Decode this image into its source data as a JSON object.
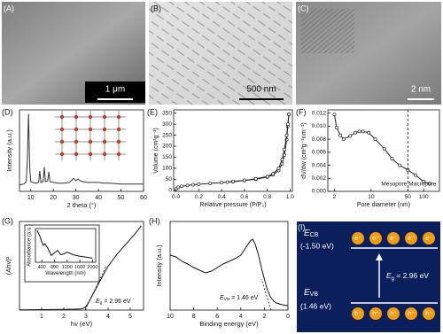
{
  "panel_labels": [
    "(A)",
    "(B)",
    "(C)",
    "(D)",
    "(E)",
    "(F)",
    "(G)",
    "(H)",
    "(I)"
  ],
  "micrographs": [
    {
      "scale_bar": "1 μm"
    },
    {
      "scale_bar": "500 nm"
    },
    {
      "scale_bar": "2 nm"
    }
  ],
  "chart_data": [
    {
      "type": "line",
      "x_label": "2 theta (°)",
      "y_label": "Intensity (a.u.)",
      "xlim": [
        5,
        60
      ],
      "ylim": [
        0,
        100
      ],
      "xticks": [
        10,
        20,
        30,
        40,
        50,
        60
      ],
      "series": [
        {
          "color": "#333333",
          "x": [
            5,
            7,
            8,
            8.5,
            9,
            9.5,
            10,
            12,
            13.5,
            14,
            14.5,
            15.5,
            16,
            16.5,
            17.5,
            18,
            18.5,
            20,
            22,
            25,
            27,
            28,
            29,
            30,
            31,
            32,
            33,
            35,
            38,
            40,
            42,
            45,
            50,
            55,
            60
          ],
          "values": [
            8,
            9,
            12,
            40,
            95,
            30,
            12,
            10,
            11,
            25,
            11,
            12,
            30,
            12,
            13,
            24,
            12,
            11,
            10,
            10,
            11,
            13,
            16,
            13,
            15,
            13,
            12,
            11,
            11,
            11,
            10,
            10,
            9,
            9,
            9
          ]
        }
      ]
    },
    {
      "type": "line",
      "x_label": "Relative pressure (P/P₀)",
      "y_label": "Volume (cm³g⁻¹)",
      "xlim": [
        -0.02,
        1.02
      ],
      "ylim": [
        -5,
        365
      ],
      "xticks": [
        {
          "value": 0,
          "label": "0.0"
        },
        0.2,
        0.4,
        0.6,
        0.8,
        {
          "value": 1,
          "label": "1.0"
        }
      ],
      "yticks": [
        0,
        50,
        100,
        150,
        200,
        250,
        300,
        350
      ],
      "series": [
        {
          "color": "#222222",
          "markers": true,
          "x": [
            0.005,
            0.02,
            0.05,
            0.1,
            0.15,
            0.2,
            0.3,
            0.4,
            0.5,
            0.6,
            0.7,
            0.8,
            0.85,
            0.9,
            0.93,
            0.95,
            0.97,
            0.98,
            0.99
          ],
          "values": [
            8,
            14,
            18,
            22,
            25,
            27,
            31,
            35,
            39,
            44,
            50,
            60,
            70,
            90,
            120,
            160,
            230,
            290,
            345
          ]
        },
        {
          "color": "#222222",
          "markers": true,
          "x": [
            0.99,
            0.98,
            0.97,
            0.95,
            0.93,
            0.9,
            0.85,
            0.8,
            0.7,
            0.6,
            0.5,
            0.45
          ],
          "values": [
            345,
            300,
            250,
            185,
            140,
            100,
            75,
            62,
            52,
            45,
            40,
            37
          ]
        }
      ]
    },
    {
      "type": "line",
      "x_label": "Pore diameter (nm)",
      "y_label": "dV/dw (cm³g⁻¹nm⁻¹)",
      "log_x": true,
      "xlim": [
        1.5,
        200
      ],
      "ylim": [
        0,
        0.0125
      ],
      "xticks": [
        2,
        10,
        50,
        100
      ],
      "yticks": [
        {
          "value": 0,
          "label": "0.000"
        },
        0.002,
        0.004,
        0.006,
        0.008,
        {
          "value": 0.01,
          "label": "0.010"
        },
        0.012
      ],
      "vline_x": 50,
      "annotations": [
        "Mesopore",
        "Macropore"
      ],
      "series": [
        {
          "color": "#222222",
          "markers": true,
          "x": [
            2,
            2.2,
            2.6,
            3,
            4,
            5,
            6,
            7,
            9,
            12,
            18,
            25,
            35,
            50,
            70,
            100,
            130
          ],
          "values": [
            0.0118,
            0.0098,
            0.0086,
            0.008,
            0.0085,
            0.009,
            0.0092,
            0.0092,
            0.009,
            0.008,
            0.0065,
            0.005,
            0.004,
            0.0033,
            0.0025,
            0.0015,
            0.0012
          ]
        }
      ]
    },
    {
      "type": "line",
      "x_label": "hv (eV)",
      "y_label": "(Ahv)²",
      "xlim": [
        0,
        5.6
      ],
      "ylim": [
        0,
        105
      ],
      "xticks": [
        1,
        2,
        3,
        4,
        5
      ],
      "annotation": {
        "symbol": "E",
        "subscript": "g",
        "text": " = 2.96 eV"
      },
      "series": [
        {
          "color": "#111111",
          "x": [
            0,
            1,
            2,
            2.5,
            2.8,
            2.96,
            3.1,
            3.3,
            3.6,
            4,
            4.4,
            4.8,
            5.2,
            5.5
          ],
          "values": [
            0.3,
            0.5,
            0.8,
            1,
            1.5,
            3,
            8,
            18,
            33,
            52,
            66,
            78,
            90,
            100
          ]
        }
      ]
    },
    {
      "type": "line",
      "x_label": "Wavelength (nm)",
      "y_label": "Absorbance (a.u.)",
      "xlim": [
        200,
        2100
      ],
      "ylim": [
        0,
        100
      ],
      "xticks": [
        400,
        800,
        1200,
        1600,
        2000
      ],
      "series": [
        {
          "color": "#111111",
          "x": [
            250,
            300,
            350,
            400,
            450,
            500,
            600,
            700,
            800,
            900,
            1000,
            1100,
            1200,
            1400,
            1600,
            1800,
            2000
          ],
          "values": [
            95,
            85,
            75,
            60,
            50,
            55,
            40,
            20,
            28,
            35,
            22,
            25,
            30,
            22,
            18,
            15,
            12
          ]
        }
      ]
    },
    {
      "type": "line",
      "x_label": "Binding energy (eV)",
      "y_label": "Intensity (a.u.)",
      "xlim": [
        10,
        0
      ],
      "ylim": [
        0,
        100
      ],
      "xticks": [
        10,
        8,
        6,
        4,
        2,
        0
      ],
      "annotation": {
        "symbol": "E",
        "subscript": "VB",
        "text": " = 1.46 eV"
      },
      "series": [
        {
          "color": "#111111",
          "x": [
            10,
            9.5,
            9,
            8.5,
            8,
            7.5,
            7,
            6.5,
            6,
            5.5,
            5,
            4.5,
            4,
            3.5,
            3.2,
            3,
            2.8,
            2.5,
            2.2,
            2,
            1.8,
            1.5,
            1.2,
            1,
            0.5,
            0
          ],
          "values": [
            62,
            60,
            55,
            52,
            48,
            45,
            42,
            44,
            48,
            52,
            55,
            58,
            62,
            72,
            78,
            80,
            75,
            62,
            45,
            35,
            25,
            15,
            10,
            8,
            6,
            5
          ]
        }
      ]
    }
  ],
  "band_diagram": {
    "cb": {
      "symbol": "E",
      "subscript": "CB",
      "energy": "(-1.50 eV)"
    },
    "vb": {
      "symbol": "E",
      "subscript": "VB",
      "energy": "(1.46 eV)"
    },
    "gap": {
      "symbol": "E",
      "subscript": "g",
      "text": " = 2.96 eV"
    },
    "electrons": [
      "e⁻",
      "e⁻",
      "e⁻",
      "e⁻",
      "e⁻"
    ],
    "holes": [
      "h⁺",
      "h⁺",
      "h⁺",
      "h⁺",
      "h⁺"
    ]
  }
}
